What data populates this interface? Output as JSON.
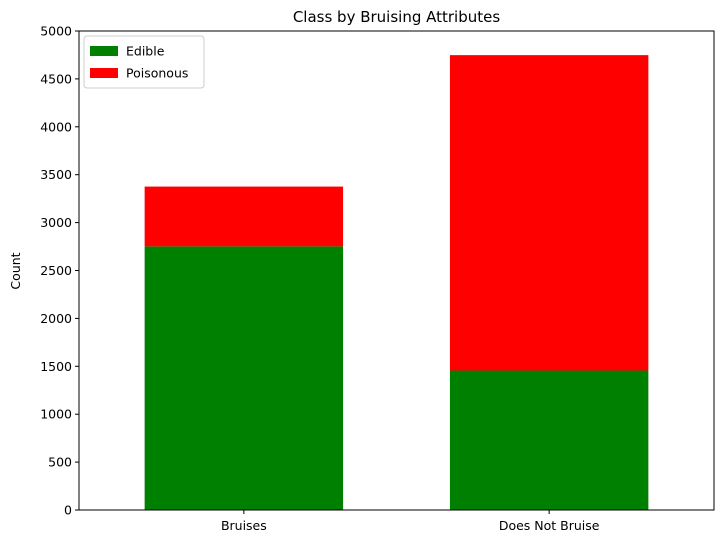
{
  "chart_data": {
    "type": "bar",
    "stacked": true,
    "title": "Class by Bruising Attributes",
    "xlabel": "",
    "ylabel": "Count",
    "categories": [
      "Bruises",
      "Does Not Bruise"
    ],
    "series": [
      {
        "name": "Edible",
        "color": "#008000",
        "values": [
          2752,
          1456
        ]
      },
      {
        "name": "Poisonous",
        "color": "#ff0000",
        "values": [
          624,
          3292
        ]
      }
    ],
    "ylim": [
      0,
      5000
    ],
    "yticks": [
      0,
      500,
      1000,
      1500,
      2000,
      2500,
      3000,
      3500,
      4000,
      4500,
      5000
    ],
    "grid": false,
    "legend_position": "top-left"
  }
}
